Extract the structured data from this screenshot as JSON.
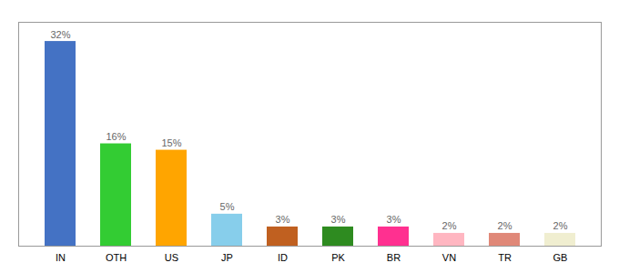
{
  "chart_data": {
    "type": "bar",
    "categories": [
      "IN",
      "OTH",
      "US",
      "JP",
      "ID",
      "PK",
      "BR",
      "VN",
      "TR",
      "GB"
    ],
    "values": [
      32,
      16,
      15,
      5,
      3,
      3,
      3,
      2,
      2,
      2
    ],
    "value_labels": [
      "32%",
      "16%",
      "15%",
      "5%",
      "3%",
      "3%",
      "3%",
      "2%",
      "2%",
      "2%"
    ],
    "colors": [
      "#4472C4",
      "#33CC33",
      "#FFA500",
      "#87CEEB",
      "#C06020",
      "#2E8B20",
      "#FF3090",
      "#FFB6C1",
      "#E08878",
      "#F0EED0"
    ],
    "ylim": [
      0,
      35
    ],
    "data_labels": true,
    "tick_labels": "x",
    "grid": false
  }
}
